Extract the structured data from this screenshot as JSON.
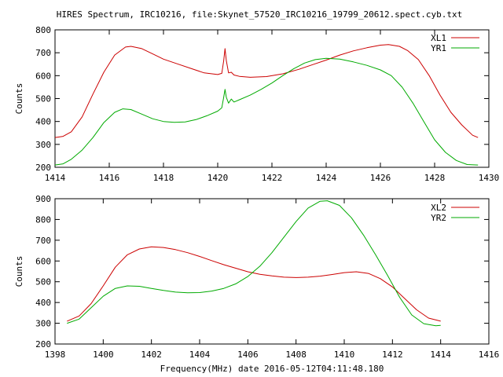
{
  "title": "HIRES Spectrum, IRC10216, file:Skynet_57520_IRC10216_19799_20612.spect.cyb.txt",
  "xlabel": "Frequency(MHz) date 2016-05-12T04:11:48.180",
  "colors": {
    "red": "#cc0000",
    "green": "#00aa00",
    "axis": "#000000",
    "background": "#ffffff"
  },
  "chart_data": [
    {
      "type": "line",
      "title": "HIRES Spectrum, IRC10216, file:Skynet_57520_IRC10216_19799_20612.spect.cyb.txt",
      "xlabel": "",
      "ylabel": "Counts",
      "xlim": [
        1414,
        1430
      ],
      "ylim": [
        200,
        800
      ],
      "x_ticks": [
        1414,
        1416,
        1418,
        1420,
        1422,
        1424,
        1426,
        1428,
        1430
      ],
      "y_ticks": [
        200,
        300,
        400,
        500,
        600,
        700,
        800
      ],
      "grid": false,
      "legend": "top-right",
      "series": [
        {
          "name": "XL1",
          "color": "#cc0000",
          "points": [
            [
              1414.0,
              330
            ],
            [
              1414.3,
              335
            ],
            [
              1414.6,
              355
            ],
            [
              1415.0,
              420
            ],
            [
              1415.4,
              520
            ],
            [
              1415.8,
              615
            ],
            [
              1416.2,
              690
            ],
            [
              1416.6,
              725
            ],
            [
              1416.8,
              728
            ],
            [
              1417.2,
              718
            ],
            [
              1417.6,
              695
            ],
            [
              1418.0,
              672
            ],
            [
              1418.5,
              652
            ],
            [
              1419.0,
              632
            ],
            [
              1419.5,
              612
            ],
            [
              1420.0,
              605
            ],
            [
              1420.15,
              610
            ],
            [
              1420.22,
              665
            ],
            [
              1420.27,
              718
            ],
            [
              1420.32,
              665
            ],
            [
              1420.4,
              612
            ],
            [
              1420.5,
              615
            ],
            [
              1420.6,
              603
            ],
            [
              1420.8,
              597
            ],
            [
              1421.2,
              593
            ],
            [
              1421.8,
              596
            ],
            [
              1422.4,
              608
            ],
            [
              1423.0,
              628
            ],
            [
              1423.5,
              648
            ],
            [
              1424.0,
              668
            ],
            [
              1424.5,
              690
            ],
            [
              1425.0,
              708
            ],
            [
              1425.5,
              722
            ],
            [
              1426.0,
              733
            ],
            [
              1426.3,
              736
            ],
            [
              1426.7,
              728
            ],
            [
              1427.0,
              710
            ],
            [
              1427.4,
              670
            ],
            [
              1427.8,
              600
            ],
            [
              1428.2,
              515
            ],
            [
              1428.6,
              440
            ],
            [
              1429.0,
              385
            ],
            [
              1429.4,
              340
            ],
            [
              1429.6,
              330
            ]
          ]
        },
        {
          "name": "YR1",
          "color": "#00aa00",
          "points": [
            [
              1414.0,
              210
            ],
            [
              1414.3,
              215
            ],
            [
              1414.6,
              235
            ],
            [
              1415.0,
              275
            ],
            [
              1415.4,
              330
            ],
            [
              1415.8,
              395
            ],
            [
              1416.2,
              440
            ],
            [
              1416.5,
              455
            ],
            [
              1416.8,
              452
            ],
            [
              1417.2,
              432
            ],
            [
              1417.6,
              412
            ],
            [
              1418.0,
              400
            ],
            [
              1418.4,
              396
            ],
            [
              1418.8,
              398
            ],
            [
              1419.2,
              408
            ],
            [
              1419.6,
              425
            ],
            [
              1420.0,
              445
            ],
            [
              1420.15,
              460
            ],
            [
              1420.22,
              505
            ],
            [
              1420.27,
              540
            ],
            [
              1420.32,
              505
            ],
            [
              1420.4,
              480
            ],
            [
              1420.5,
              498
            ],
            [
              1420.6,
              485
            ],
            [
              1420.8,
              495
            ],
            [
              1421.2,
              515
            ],
            [
              1421.6,
              540
            ],
            [
              1422.0,
              568
            ],
            [
              1422.4,
              600
            ],
            [
              1422.8,
              630
            ],
            [
              1423.2,
              655
            ],
            [
              1423.6,
              670
            ],
            [
              1424.0,
              676
            ],
            [
              1424.5,
              672
            ],
            [
              1425.0,
              660
            ],
            [
              1425.5,
              645
            ],
            [
              1426.0,
              625
            ],
            [
              1426.4,
              600
            ],
            [
              1426.8,
              550
            ],
            [
              1427.2,
              480
            ],
            [
              1427.6,
              400
            ],
            [
              1428.0,
              320
            ],
            [
              1428.4,
              265
            ],
            [
              1428.8,
              230
            ],
            [
              1429.2,
              212
            ],
            [
              1429.6,
              210
            ]
          ]
        }
      ]
    },
    {
      "type": "line",
      "title": "",
      "xlabel": "Frequency(MHz) date 2016-05-12T04:11:48.180",
      "ylabel": "Counts",
      "xlim": [
        1398,
        1416
      ],
      "ylim": [
        200,
        900
      ],
      "x_ticks": [
        1398,
        1400,
        1402,
        1404,
        1406,
        1408,
        1410,
        1412,
        1414,
        1416
      ],
      "y_ticks": [
        200,
        300,
        400,
        500,
        600,
        700,
        800,
        900
      ],
      "grid": false,
      "legend": "top-right",
      "series": [
        {
          "name": "XL2",
          "color": "#cc0000",
          "points": [
            [
              1398.5,
              310
            ],
            [
              1399.0,
              335
            ],
            [
              1399.5,
              395
            ],
            [
              1400.0,
              480
            ],
            [
              1400.5,
              570
            ],
            [
              1401.0,
              630
            ],
            [
              1401.5,
              658
            ],
            [
              1402.0,
              668
            ],
            [
              1402.5,
              665
            ],
            [
              1403.0,
              655
            ],
            [
              1403.5,
              640
            ],
            [
              1404.0,
              622
            ],
            [
              1404.5,
              602
            ],
            [
              1405.0,
              582
            ],
            [
              1405.5,
              565
            ],
            [
              1406.0,
              548
            ],
            [
              1406.5,
              536
            ],
            [
              1407.0,
              528
            ],
            [
              1407.5,
              522
            ],
            [
              1408.0,
              520
            ],
            [
              1408.5,
              522
            ],
            [
              1409.0,
              527
            ],
            [
              1409.5,
              535
            ],
            [
              1410.0,
              544
            ],
            [
              1410.5,
              548
            ],
            [
              1411.0,
              540
            ],
            [
              1411.5,
              515
            ],
            [
              1412.0,
              475
            ],
            [
              1412.5,
              420
            ],
            [
              1413.0,
              365
            ],
            [
              1413.5,
              325
            ],
            [
              1414.0,
              310
            ]
          ]
        },
        {
          "name": "YR2",
          "color": "#00aa00",
          "points": [
            [
              1398.5,
              300
            ],
            [
              1399.0,
              320
            ],
            [
              1399.5,
              375
            ],
            [
              1400.0,
              430
            ],
            [
              1400.5,
              468
            ],
            [
              1401.0,
              480
            ],
            [
              1401.5,
              478
            ],
            [
              1402.0,
              468
            ],
            [
              1402.5,
              458
            ],
            [
              1403.0,
              450
            ],
            [
              1403.5,
              447
            ],
            [
              1404.0,
              448
            ],
            [
              1404.5,
              455
            ],
            [
              1405.0,
              468
            ],
            [
              1405.5,
              490
            ],
            [
              1406.0,
              525
            ],
            [
              1406.5,
              575
            ],
            [
              1407.0,
              640
            ],
            [
              1407.5,
              715
            ],
            [
              1408.0,
              790
            ],
            [
              1408.5,
              855
            ],
            [
              1409.0,
              888
            ],
            [
              1409.3,
              890
            ],
            [
              1409.8,
              868
            ],
            [
              1410.3,
              808
            ],
            [
              1410.8,
              725
            ],
            [
              1411.3,
              630
            ],
            [
              1411.8,
              530
            ],
            [
              1412.3,
              425
            ],
            [
              1412.8,
              340
            ],
            [
              1413.3,
              298
            ],
            [
              1413.8,
              288
            ],
            [
              1414.0,
              290
            ]
          ]
        }
      ]
    }
  ]
}
